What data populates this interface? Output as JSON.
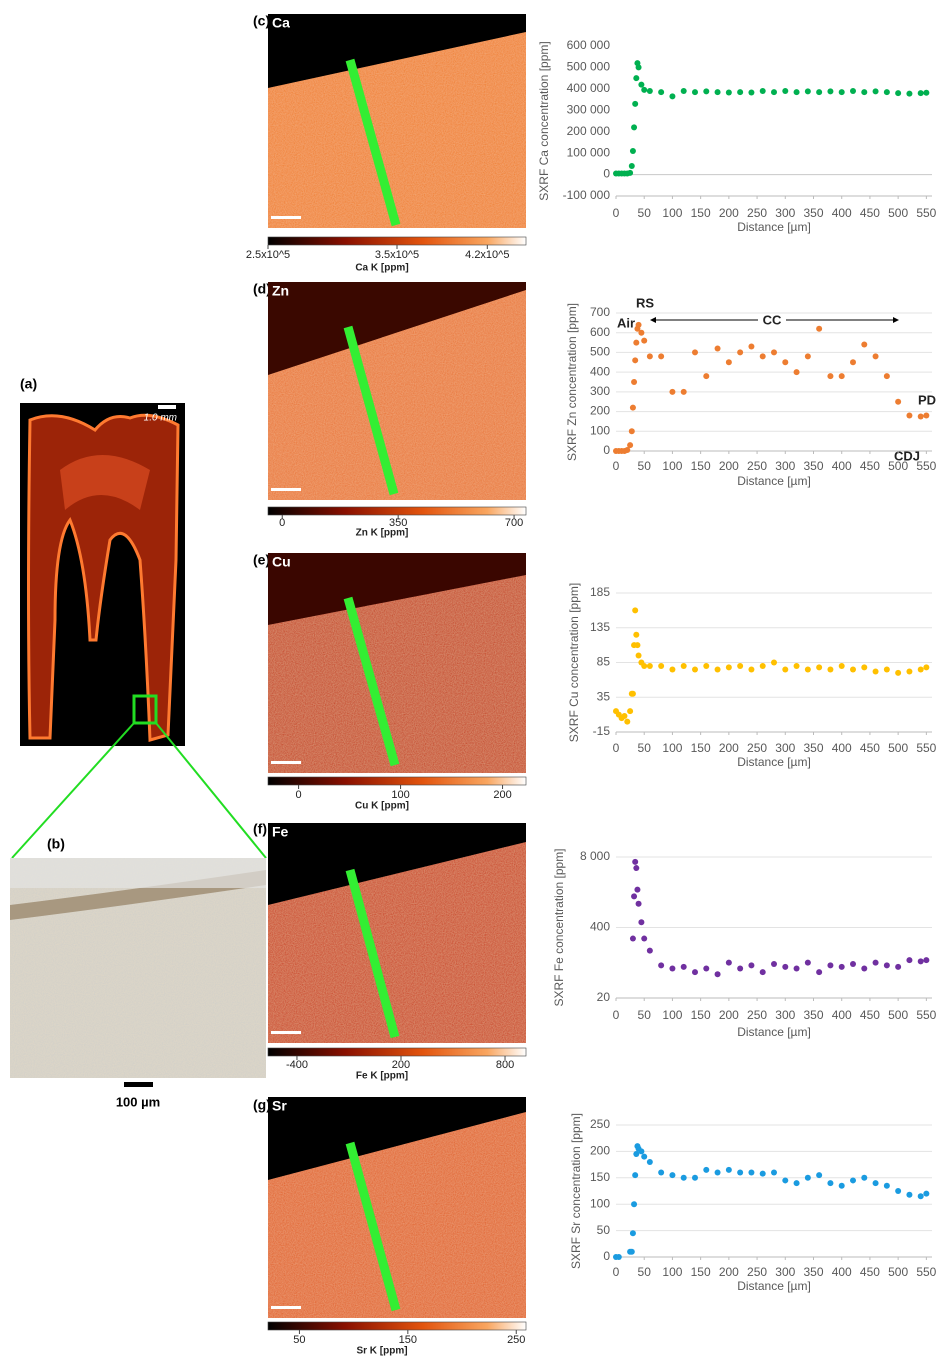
{
  "panel_labels": [
    "(a)",
    "(b)",
    "(c)",
    "(d)",
    "(e)",
    "(f)",
    "(g)"
  ],
  "tooth_scale": "1.0 mm",
  "photo_scale": "100 µm",
  "map_labels": [
    "Ca",
    "Zn",
    "Cu",
    "Fe",
    "Sr"
  ],
  "zn_annotations": [
    "Air",
    "RS",
    "CC",
    "PD",
    "CDJ"
  ],
  "colorbars": [
    {
      "label": "Ca K [ppm]",
      "lim": [
        250000,
        450000
      ],
      "ticks": [
        {
          "value": 250000,
          "label": "2.5x10^5"
        },
        {
          "value": 350000,
          "label": "3.5x10^5"
        },
        {
          "value": 420000,
          "label": "4.2x10^5"
        }
      ]
    },
    {
      "label": "Zn K [ppm]",
      "lim": [
        -43,
        736
      ],
      "ticks": [
        0,
        350,
        700
      ]
    },
    {
      "label": "Cu K [ppm]",
      "lim": [
        -30,
        223
      ],
      "ticks": [
        0,
        100,
        200
      ]
    },
    {
      "label": "Fe K [ppm]",
      "lim": [
        -567,
        921
      ],
      "ticks": [
        -400,
        200,
        800
      ]
    },
    {
      "label": "Sr K [ppm]",
      "lim": [
        21,
        259
      ],
      "ticks": [
        50,
        150,
        250
      ]
    }
  ],
  "chart_data": [
    {
      "type": "scatter",
      "x_label": "Distance [µm]",
      "y_label": "SXRF Ca concentration [ppm]",
      "color": "#00b050",
      "grid": false,
      "log_y": false,
      "x": [
        0,
        5,
        10,
        15,
        20,
        25,
        28,
        30,
        32,
        34,
        36,
        38,
        40,
        45,
        50,
        60,
        80,
        100,
        120,
        140,
        160,
        180,
        200,
        220,
        240,
        260,
        280,
        300,
        320,
        340,
        360,
        380,
        400,
        420,
        440,
        460,
        480,
        500,
        520,
        540,
        550
      ],
      "values": [
        5000,
        5000,
        5000,
        5000,
        5000,
        8000,
        40000,
        110000,
        220000,
        330000,
        450000,
        520000,
        500000,
        420000,
        395000,
        390000,
        385000,
        365000,
        390000,
        385000,
        388000,
        385000,
        383000,
        385000,
        383000,
        390000,
        385000,
        390000,
        385000,
        388000,
        385000,
        388000,
        385000,
        390000,
        385000,
        388000,
        385000,
        380000,
        378000,
        380000,
        382000
      ],
      "xlim": [
        0,
        560
      ],
      "xticks": [
        0,
        50,
        100,
        150,
        200,
        250,
        300,
        350,
        400,
        450,
        500,
        550
      ],
      "ylim": [
        -100000,
        600000
      ],
      "yticks": [
        {
          "value": -100000,
          "label": "-100 000"
        },
        0,
        {
          "value": 100000,
          "label": "100 000"
        },
        {
          "value": 200000,
          "label": "200 000"
        },
        {
          "value": 300000,
          "label": "300 000"
        },
        {
          "value": 400000,
          "label": "400 000"
        },
        {
          "value": 500000,
          "label": "500 000"
        },
        {
          "value": 600000,
          "label": "600 000"
        }
      ]
    },
    {
      "type": "scatter",
      "x_label": "Distance [µm]",
      "y_label": "SXRF Zn concentration [ppm]",
      "color": "#ed7d31",
      "grid": true,
      "log_y": false,
      "x": [
        0,
        5,
        10,
        15,
        20,
        25,
        28,
        30,
        32,
        34,
        36,
        38,
        40,
        45,
        50,
        60,
        80,
        100,
        120,
        140,
        160,
        180,
        200,
        220,
        240,
        260,
        280,
        300,
        320,
        340,
        360,
        380,
        400,
        420,
        440,
        460,
        480,
        500,
        520,
        540,
        550
      ],
      "values": [
        0,
        0,
        0,
        0,
        5,
        30,
        100,
        220,
        350,
        460,
        550,
        620,
        640,
        600,
        560,
        480,
        480,
        300,
        300,
        500,
        380,
        520,
        450,
        500,
        530,
        480,
        500,
        450,
        400,
        480,
        620,
        380,
        380,
        450,
        540,
        480,
        380,
        250,
        180,
        175,
        180
      ],
      "xlim": [
        0,
        560
      ],
      "xticks": [
        0,
        50,
        100,
        150,
        200,
        250,
        300,
        350,
        400,
        450,
        500,
        550
      ],
      "ylim": [
        0,
        700
      ],
      "yticks": [
        0,
        100,
        200,
        300,
        400,
        500,
        600,
        700
      ]
    },
    {
      "type": "scatter",
      "x_label": "Distance [µm]",
      "y_label": "SXRF Cu concentration [ppm]",
      "color": "#ffc000",
      "grid": true,
      "log_y": false,
      "x": [
        0,
        5,
        10,
        15,
        20,
        25,
        28,
        30,
        32,
        34,
        36,
        38,
        40,
        45,
        50,
        60,
        80,
        100,
        120,
        140,
        160,
        180,
        200,
        220,
        240,
        260,
        280,
        300,
        320,
        340,
        360,
        380,
        400,
        420,
        440,
        460,
        480,
        500,
        520,
        540,
        550
      ],
      "values": [
        15,
        10,
        5,
        8,
        0,
        15,
        40,
        40,
        110,
        160,
        125,
        110,
        95,
        85,
        80,
        80,
        80,
        75,
        80,
        75,
        80,
        75,
        78,
        80,
        75,
        80,
        85,
        75,
        80,
        75,
        78,
        75,
        80,
        75,
        78,
        72,
        75,
        70,
        72,
        75,
        78
      ],
      "xlim": [
        0,
        560
      ],
      "xticks": [
        0,
        50,
        100,
        150,
        200,
        250,
        300,
        350,
        400,
        450,
        500,
        550
      ],
      "ylim": [
        -15,
        185
      ],
      "yticks": [
        -15,
        35,
        85,
        135,
        185
      ]
    },
    {
      "type": "scatter",
      "x_label": "Distance [µm]",
      "y_label": "SXRF Fe concentration [ppm]",
      "color": "#7030a0",
      "grid": true,
      "log_y": true,
      "x": [
        0,
        5,
        10,
        15,
        20,
        25,
        28,
        30,
        32,
        34,
        36,
        38,
        40,
        45,
        50,
        60,
        80,
        100,
        120,
        140,
        160,
        180,
        200,
        220,
        240,
        260,
        280,
        300,
        320,
        340,
        360,
        380,
        400,
        420,
        440,
        460,
        480,
        500,
        520,
        540,
        550
      ],
      "values": [
        null,
        null,
        null,
        null,
        null,
        null,
        null,
        250,
        1500,
        6500,
        5000,
        2000,
        1100,
        500,
        250,
        150,
        80,
        70,
        75,
        60,
        70,
        55,
        90,
        70,
        80,
        60,
        85,
        75,
        70,
        90,
        60,
        80,
        75,
        85,
        70,
        90,
        80,
        75,
        100,
        95,
        100
      ],
      "xlim": [
        0,
        560
      ],
      "xticks": [
        0,
        50,
        100,
        150,
        200,
        250,
        300,
        350,
        400,
        450,
        500,
        550
      ],
      "ylim": [
        20,
        8000
      ],
      "yticks": [
        20,
        400,
        {
          "value": 8000,
          "label": "8 000"
        }
      ]
    },
    {
      "type": "scatter",
      "x_label": "Distance [µm]",
      "y_label": "SXRF Sr concentration [ppm]",
      "color": "#1a9be0",
      "grid": true,
      "log_y": false,
      "x": [
        0,
        5,
        10,
        15,
        20,
        25,
        28,
        30,
        32,
        34,
        36,
        38,
        40,
        45,
        50,
        60,
        80,
        100,
        120,
        140,
        160,
        180,
        200,
        220,
        240,
        260,
        280,
        300,
        320,
        340,
        360,
        380,
        400,
        420,
        440,
        460,
        480,
        500,
        520,
        540,
        550
      ],
      "values": [
        0,
        0,
        null,
        null,
        null,
        10,
        10,
        45,
        100,
        155,
        195,
        210,
        205,
        200,
        190,
        180,
        160,
        155,
        150,
        150,
        165,
        160,
        165,
        160,
        160,
        158,
        160,
        145,
        140,
        150,
        155,
        140,
        135,
        145,
        150,
        140,
        135,
        125,
        118,
        115,
        120
      ],
      "xlim": [
        0,
        560
      ],
      "xticks": [
        0,
        50,
        100,
        150,
        200,
        250,
        300,
        350,
        400,
        450,
        500,
        550
      ],
      "ylim": [
        0,
        250
      ],
      "yticks": [
        0,
        50,
        100,
        150,
        200,
        250
      ]
    }
  ]
}
